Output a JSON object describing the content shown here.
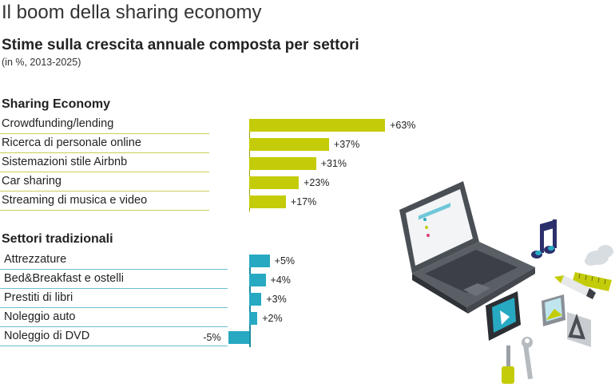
{
  "header": {
    "title": "Il boom della sharing economy",
    "subtitle": "Stime sulla crescita annuale composta per settori",
    "note": "(in %, 2013-2025)"
  },
  "colors": {
    "sharing": "#c4cc0a",
    "traditional": "#27a9c2",
    "sharing_line": "#c9cf5a",
    "traditional_line": "#6bbfd2"
  },
  "illustration_icons": [
    "laptop-icon",
    "music-note-icon",
    "cloud-icon",
    "ruler-icon",
    "pencil-icon",
    "film-strip-icon",
    "photo-icon",
    "font-icon",
    "screwdriver-icon",
    "wrench-icon"
  ],
  "chart_data": {
    "type": "bar",
    "orientation": "horizontal",
    "title": "Il boom della sharing economy",
    "subtitle": "Stime sulla crescita annuale composta per settori",
    "unit": "%",
    "groups": [
      {
        "name": "Sharing Economy",
        "color": "#c4cc0a",
        "categories": [
          "Crowdfunding/lending",
          "Ricerca di personale online",
          "Sistemazioni stile Airbnb",
          "Car sharing",
          "Streaming di musica e video"
        ],
        "values": [
          63,
          37,
          31,
          23,
          17
        ],
        "labels": [
          "+63%",
          "+37%",
          "+31%",
          "+23%",
          "+17%"
        ]
      },
      {
        "name": "Settori tradizionali",
        "color": "#27a9c2",
        "categories": [
          "Attrezzature",
          "Bed&Breakfast e ostelli",
          "Prestiti di libri",
          "Noleggio auto",
          "Noleggio di DVD"
        ],
        "values": [
          5,
          4,
          3,
          2,
          -5
        ],
        "labels": [
          "+5%",
          "+4%",
          "+3%",
          "+2%",
          "-5%"
        ]
      }
    ]
  }
}
